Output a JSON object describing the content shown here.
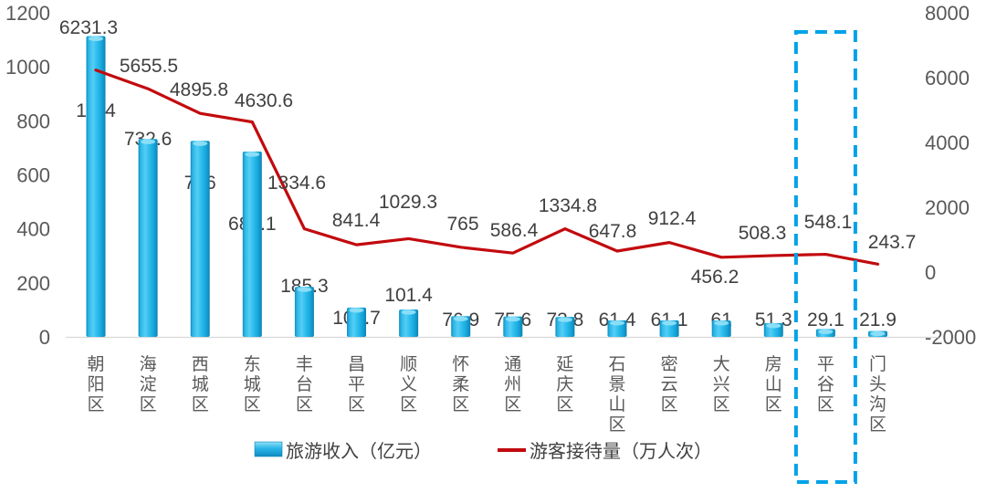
{
  "chart_data": {
    "type": "bar+line",
    "categories": [
      "朝阳区",
      "海淀区",
      "西城区",
      "东城区",
      "丰台区",
      "昌平区",
      "顺义区",
      "怀柔区",
      "通州区",
      "延庆区",
      "石景山区",
      "密云区",
      "大兴区",
      "房山区",
      "平谷区",
      "门头沟区"
    ],
    "series": [
      {
        "name": "旅游收入（亿元）",
        "type": "bar",
        "axis": "left",
        "values": [
          1114,
          732.6,
          726,
          686.1,
          185.3,
          108.7,
          101.4,
          76.9,
          75.6,
          73.8,
          61.4,
          61.1,
          61,
          51.3,
          29.1,
          21.9
        ],
        "labels": [
          "1114",
          "732.6",
          "726",
          "686.1",
          "185.3",
          "108.7",
          "101.4",
          "76.9",
          "75.6",
          "73.8",
          "61.4",
          "61.1",
          "61",
          "51.3",
          "29.1",
          "21.9"
        ],
        "color": "#1fb0e8"
      },
      {
        "name": "游客接待量（万人次）",
        "type": "line",
        "axis": "right",
        "values": [
          6231.3,
          5655.5,
          4895.8,
          4630.6,
          1334.6,
          841.4,
          1029.3,
          765,
          586.4,
          1334.8,
          647.8,
          912.4,
          456.2,
          508.3,
          548.1,
          243.7
        ],
        "labels": [
          "6231.3",
          "5655.5",
          "4895.8",
          "4630.6",
          "1334.6",
          "841.4",
          "1029.3",
          "765",
          "586.4",
          "1334.8",
          "647.8",
          "912.4",
          "456.2",
          "508.3",
          "548.1",
          "243.7"
        ],
        "color": "#c20a0e"
      }
    ],
    "left_axis": {
      "min": 0,
      "max": 1200,
      "step": 200,
      "tick_labels": [
        "0",
        "200",
        "400",
        "600",
        "800",
        "1000",
        "1200"
      ]
    },
    "right_axis": {
      "min": -2000,
      "max": 8000,
      "step": 2000,
      "tick_labels": [
        "-2000",
        "0",
        "2000",
        "4000",
        "6000",
        "8000"
      ]
    },
    "grid": false,
    "legend_position": "bottom",
    "legend": [
      {
        "swatch": "bar",
        "label": "旅游收入（亿元）"
      },
      {
        "swatch": "line",
        "label": "游客接待量（万人次）"
      }
    ],
    "highlight": {
      "category": "平谷区",
      "style": "dashed-box",
      "color": "#00a2e8"
    }
  },
  "colors": {
    "bar_main": "#1fb0e8",
    "bar_edge": "#0c83b5",
    "bar_cap": "#8edff7",
    "line": "#c20a0e",
    "highlight_box": "#00a2e8",
    "axis_text": "#595959",
    "label_text": "#404040",
    "axis_line": "#d9d9d9",
    "background": "#ffffff"
  }
}
